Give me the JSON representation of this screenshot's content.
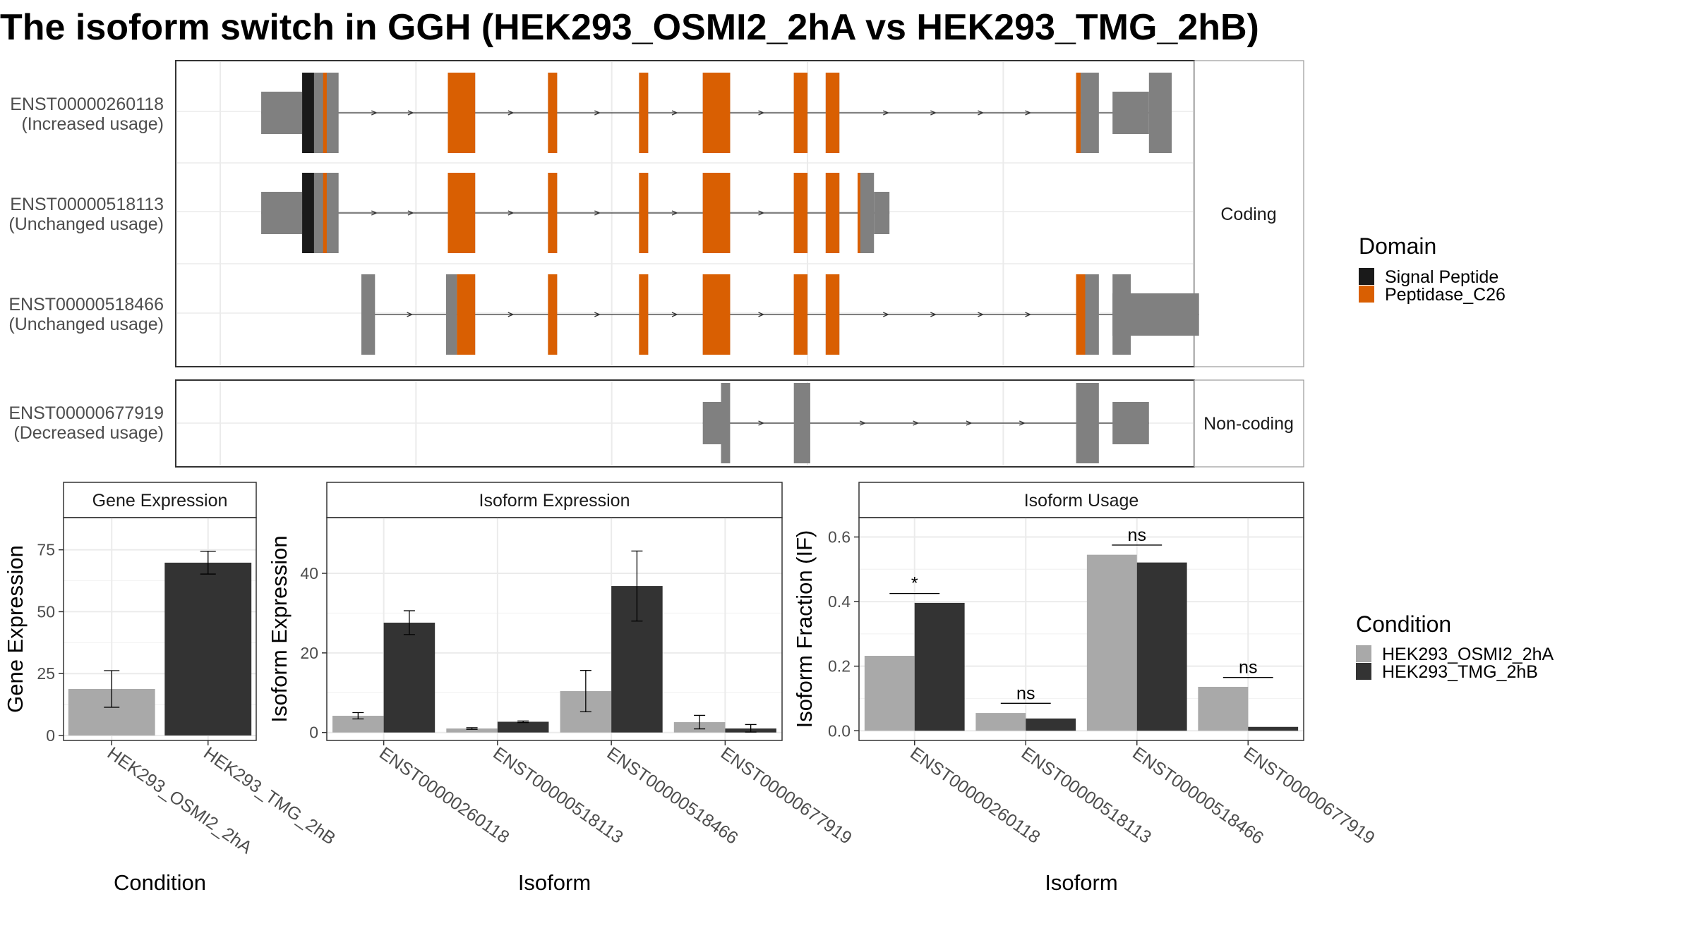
{
  "title": "The isoform switch in GGH (HEK293_OSMI2_2hA vs HEK293_TMG_2hB)",
  "colors": {
    "signal_peptide": "#1a1a1a",
    "peptidase": "#d95f02",
    "exon": "#808080",
    "cond_a": "#a9a9a9",
    "cond_b": "#333333"
  },
  "structure": {
    "groups": [
      {
        "label": "Coding",
        "isoforms": [
          {
            "id": "ENST00000260118",
            "usage": "(Increased usage)",
            "utr": [
              [
                0.045,
                0.09
              ],
              [
                0.98,
                1.02
              ]
            ],
            "cds": [
              [
                0.09,
                0.13
              ],
              [
                0.25,
                0.28
              ],
              [
                0.36,
                0.37
              ],
              [
                0.46,
                0.47
              ],
              [
                0.53,
                0.56
              ],
              [
                0.63,
                0.645
              ],
              [
                0.665,
                0.68
              ],
              [
                0.94,
                0.945
              ]
            ],
            "ncexon": [
              [
                0.945,
                0.965
              ],
              [
                1.02,
                1.045
              ]
            ],
            "signal": [
              [
                0.09,
                0.103
              ]
            ],
            "pep": [
              [
                0.113,
                0.117
              ],
              [
                0.25,
                0.28
              ],
              [
                0.36,
                0.37
              ],
              [
                0.46,
                0.47
              ],
              [
                0.53,
                0.56
              ],
              [
                0.63,
                0.645
              ],
              [
                0.665,
                0.68
              ],
              [
                0.94,
                0.945
              ]
            ]
          },
          {
            "id": "ENST00000518113",
            "usage": "(Unchanged usage)",
            "utr": [
              [
                0.045,
                0.09
              ],
              [
                0.718,
                0.735
              ]
            ],
            "cds": [
              [
                0.09,
                0.13
              ],
              [
                0.25,
                0.28
              ],
              [
                0.36,
                0.37
              ],
              [
                0.46,
                0.47
              ],
              [
                0.53,
                0.56
              ],
              [
                0.63,
                0.645
              ],
              [
                0.665,
                0.68
              ],
              [
                0.7,
                0.718
              ]
            ],
            "ncexon": [],
            "signal": [
              [
                0.09,
                0.103
              ]
            ],
            "pep": [
              [
                0.113,
                0.117
              ],
              [
                0.25,
                0.28
              ],
              [
                0.36,
                0.37
              ],
              [
                0.46,
                0.47
              ],
              [
                0.53,
                0.56
              ],
              [
                0.63,
                0.645
              ],
              [
                0.665,
                0.68
              ],
              [
                0.7,
                0.703
              ]
            ]
          },
          {
            "id": "ENST00000518466",
            "usage": "(Unchanged usage)",
            "utr": [
              [
                0.98,
                1.075
              ]
            ],
            "cds": [
              [
                0.26,
                0.28
              ],
              [
                0.36,
                0.37
              ],
              [
                0.46,
                0.47
              ],
              [
                0.53,
                0.56
              ],
              [
                0.63,
                0.645
              ],
              [
                0.665,
                0.68
              ],
              [
                0.94,
                0.965
              ],
              [
                0.98,
                1.0
              ]
            ],
            "ncexon": [
              [
                0.155,
                0.17
              ],
              [
                0.248,
                0.26
              ]
            ],
            "signal": [],
            "pep": [
              [
                0.26,
                0.28
              ],
              [
                0.36,
                0.37
              ],
              [
                0.46,
                0.47
              ],
              [
                0.53,
                0.56
              ],
              [
                0.63,
                0.645
              ],
              [
                0.665,
                0.68
              ],
              [
                0.94,
                0.95
              ]
            ]
          }
        ]
      },
      {
        "label": "Non-coding",
        "isoforms": [
          {
            "id": "ENST00000677919",
            "usage": "(Decreased usage)",
            "utr": [],
            "cds": [],
            "ncexon": [
              [
                0.53,
                0.55
              ],
              [
                0.55,
                0.56
              ],
              [
                0.63,
                0.648
              ],
              [
                0.94,
                0.965
              ],
              [
                0.98,
                1.02
              ]
            ],
            "tall": [
              [
                0.55,
                0.56
              ],
              [
                0.63,
                0.648
              ],
              [
                0.94,
                0.965
              ]
            ],
            "signal": [],
            "pep": []
          }
        ]
      }
    ]
  },
  "legend_domain": {
    "title": "Domain",
    "items": [
      "Signal Peptide",
      "Peptidase_C26"
    ]
  },
  "legend_condition": {
    "title": "Condition",
    "items": [
      "HEK293_OSMI2_2hA",
      "HEK293_TMG_2hB"
    ]
  },
  "chart_data": [
    {
      "type": "bar",
      "title": "Gene Expression",
      "xlabel": "Condition",
      "ylabel": "Gene Expression",
      "categories": [
        "HEK293_OSMI2_2hA",
        "HEK293_TMG_2hB"
      ],
      "values": [
        18.8,
        69.8
      ],
      "errors": [
        [
          11.4,
          26.2
        ],
        [
          65.2,
          74.4
        ]
      ],
      "ylim": [
        -2,
        88
      ],
      "yticks": [
        0,
        25,
        50,
        75
      ]
    },
    {
      "type": "bar",
      "title": "Isoform Expression",
      "xlabel": "Isoform",
      "ylabel": "Isoform Expression",
      "categories": [
        "ENST00000260118",
        "ENST00000518113",
        "ENST00000518466",
        "ENST00000677919"
      ],
      "series": [
        {
          "name": "HEK293_OSMI2_2hA",
          "values": [
            4.2,
            1.0,
            10.4,
            2.6
          ],
          "errors": [
            [
              3.4,
              5.0
            ],
            [
              0.8,
              1.2
            ],
            [
              5.2,
              15.6
            ],
            [
              0.9,
              4.3
            ]
          ]
        },
        {
          "name": "HEK293_TMG_2hB",
          "values": [
            27.6,
            2.7,
            36.8,
            1.0
          ],
          "errors": [
            [
              24.6,
              30.6
            ],
            [
              2.5,
              2.9
            ],
            [
              28.0,
              45.6
            ],
            [
              0.1,
              2.0
            ]
          ]
        }
      ],
      "ylim": [
        -2,
        54
      ],
      "yticks": [
        0,
        20,
        40
      ]
    },
    {
      "type": "bar",
      "title": "Isoform Usage",
      "xlabel": "Isoform",
      "ylabel": "Isoform Fraction (IF)",
      "categories": [
        "ENST00000260118",
        "ENST00000518113",
        "ENST00000518466",
        "ENST00000677919"
      ],
      "series": [
        {
          "name": "HEK293_OSMI2_2hA",
          "values": [
            0.232,
            0.055,
            0.545,
            0.136
          ]
        },
        {
          "name": "HEK293_TMG_2hB",
          "values": [
            0.396,
            0.038,
            0.521,
            0.012
          ]
        }
      ],
      "significance": [
        "*",
        "ns",
        "ns",
        "ns"
      ],
      "sig_y": [
        0.425,
        0.085,
        0.575,
        0.165
      ],
      "ylim": [
        -0.03,
        0.66
      ],
      "yticks": [
        0.0,
        0.2,
        0.4,
        0.6
      ],
      "ytick_labels": [
        "0.0",
        "0.2",
        "0.4",
        "0.6"
      ]
    }
  ]
}
